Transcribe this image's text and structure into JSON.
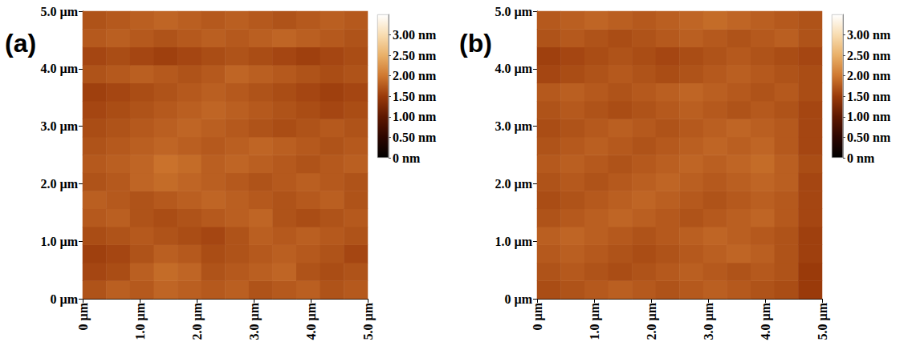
{
  "chart_data": [
    {
      "type": "heatmap",
      "panel": "(a)",
      "xlim": [
        0,
        5
      ],
      "ylim": [
        0,
        5
      ],
      "xticks": [
        {
          "value": 0,
          "label": "0 µm"
        },
        {
          "value": 1,
          "label": "1.0 µm"
        },
        {
          "value": 2,
          "label": "2.0 µm"
        },
        {
          "value": 3,
          "label": "3.0 µm"
        },
        {
          "value": 4,
          "label": "4.0 µm"
        },
        {
          "value": 5,
          "label": "5.0 µm"
        }
      ],
      "yticks": [
        {
          "value": 0,
          "label": "0 µm"
        },
        {
          "value": 1,
          "label": "1.0 µm"
        },
        {
          "value": 2,
          "label": "2.0 µm"
        },
        {
          "value": 3,
          "label": "3.0 µm"
        },
        {
          "value": 4,
          "label": "4.0 µm"
        },
        {
          "value": 5,
          "label": "5.0 µm"
        }
      ],
      "colorbar": {
        "range": [
          0,
          3.5
        ],
        "ticks": [
          {
            "value": 0,
            "label": "0 nm"
          },
          {
            "value": 0.5,
            "label": "0.50 nm"
          },
          {
            "value": 1,
            "label": "1.00 nm"
          },
          {
            "value": 1.5,
            "label": "1.50 nm"
          },
          {
            "value": 2,
            "label": "2.00 nm"
          },
          {
            "value": 2.5,
            "label": "2.50 nm"
          },
          {
            "value": 3,
            "label": "3.00 nm"
          }
        ]
      },
      "cells": [
        [
          1.7,
          1.8,
          1.75,
          1.85,
          1.8,
          1.75,
          1.8,
          1.7,
          1.75,
          1.8,
          1.7,
          1.75
        ],
        [
          1.6,
          1.65,
          1.8,
          1.9,
          1.85,
          1.7,
          1.75,
          1.8,
          1.85,
          1.7,
          1.65,
          1.7
        ],
        [
          1.55,
          1.6,
          1.7,
          1.8,
          1.75,
          1.65,
          1.7,
          1.75,
          1.8,
          1.75,
          1.7,
          1.6
        ],
        [
          1.65,
          1.7,
          1.75,
          1.7,
          1.65,
          1.6,
          1.7,
          1.8,
          1.75,
          1.8,
          1.75,
          1.7
        ],
        [
          1.75,
          1.8,
          1.7,
          1.65,
          1.7,
          1.75,
          1.8,
          1.85,
          1.7,
          1.65,
          1.7,
          1.75
        ],
        [
          1.8,
          1.75,
          1.7,
          1.75,
          1.8,
          1.85,
          1.8,
          1.75,
          1.7,
          1.75,
          1.8,
          1.7
        ],
        [
          1.7,
          1.75,
          1.85,
          1.9,
          1.85,
          1.8,
          1.75,
          1.7,
          1.75,
          1.8,
          1.75,
          1.7
        ],
        [
          1.75,
          1.8,
          1.85,
          1.95,
          1.9,
          1.8,
          1.85,
          1.8,
          1.75,
          1.7,
          1.75,
          1.8
        ],
        [
          1.7,
          1.75,
          1.8,
          1.85,
          1.8,
          1.75,
          1.8,
          1.85,
          1.8,
          1.75,
          1.7,
          1.75
        ],
        [
          1.65,
          1.7,
          1.75,
          1.8,
          1.85,
          1.8,
          1.75,
          1.7,
          1.65,
          1.7,
          1.75,
          1.7
        ],
        [
          1.6,
          1.65,
          1.7,
          1.75,
          1.8,
          1.85,
          1.8,
          1.75,
          1.7,
          1.65,
          1.6,
          1.65
        ],
        [
          1.55,
          1.6,
          1.65,
          1.7,
          1.75,
          1.8,
          1.75,
          1.7,
          1.65,
          1.6,
          1.55,
          1.6
        ],
        [
          1.7,
          1.75,
          1.8,
          1.75,
          1.7,
          1.75,
          1.85,
          1.8,
          1.75,
          1.7,
          1.65,
          1.7
        ],
        [
          1.6,
          1.65,
          1.6,
          1.55,
          1.6,
          1.65,
          1.7,
          1.65,
          1.6,
          1.55,
          1.6,
          1.65
        ],
        [
          1.75,
          1.8,
          1.75,
          1.7,
          1.75,
          1.8,
          1.75,
          1.8,
          1.85,
          1.8,
          1.75,
          1.7
        ],
        [
          1.7,
          1.75,
          1.8,
          1.85,
          1.8,
          1.75,
          1.8,
          1.75,
          1.7,
          1.75,
          1.8,
          1.75
        ]
      ]
    },
    {
      "type": "heatmap",
      "panel": "(b)",
      "xlim": [
        0,
        5
      ],
      "ylim": [
        0,
        5
      ],
      "xticks": [
        {
          "value": 0,
          "label": "0 µm"
        },
        {
          "value": 1,
          "label": "1.0 µm"
        },
        {
          "value": 2,
          "label": "2.0 µm"
        },
        {
          "value": 3,
          "label": "3.0 µm"
        },
        {
          "value": 4,
          "label": "4.0 µm"
        },
        {
          "value": 5,
          "label": "5.0 µm"
        }
      ],
      "yticks": [
        {
          "value": 0,
          "label": "0 µm"
        },
        {
          "value": 1,
          "label": "1.0 µm"
        },
        {
          "value": 2,
          "label": "2.0 µm"
        },
        {
          "value": 3,
          "label": "3.0 µm"
        },
        {
          "value": 4,
          "label": "4.0 µm"
        },
        {
          "value": 5,
          "label": "5.0 µm"
        }
      ],
      "colorbar": {
        "range": [
          0,
          3.5
        ],
        "ticks": [
          {
            "value": 0,
            "label": "0 nm"
          },
          {
            "value": 0.5,
            "label": "0.50 nm"
          },
          {
            "value": 1,
            "label": "1.00 nm"
          },
          {
            "value": 1.5,
            "label": "1.50 nm"
          },
          {
            "value": 2,
            "label": "2.00 nm"
          },
          {
            "value": 2.5,
            "label": "2.50 nm"
          },
          {
            "value": 3,
            "label": "3.00 nm"
          }
        ]
      },
      "cells": [
        [
          1.65,
          1.7,
          1.75,
          1.8,
          1.75,
          1.7,
          1.75,
          1.8,
          1.75,
          1.7,
          1.65,
          1.5
        ],
        [
          1.7,
          1.75,
          1.7,
          1.65,
          1.7,
          1.75,
          1.8,
          1.75,
          1.7,
          1.75,
          1.7,
          1.5
        ],
        [
          1.75,
          1.8,
          1.75,
          1.7,
          1.65,
          1.7,
          1.75,
          1.8,
          1.85,
          1.8,
          1.7,
          1.55
        ],
        [
          1.8,
          1.85,
          1.8,
          1.75,
          1.7,
          1.75,
          1.8,
          1.85,
          1.8,
          1.75,
          1.7,
          1.55
        ],
        [
          1.7,
          1.75,
          1.8,
          1.85,
          1.8,
          1.75,
          1.7,
          1.75,
          1.8,
          1.85,
          1.75,
          1.6
        ],
        [
          1.65,
          1.7,
          1.75,
          1.8,
          1.85,
          1.8,
          1.75,
          1.7,
          1.75,
          1.8,
          1.75,
          1.6
        ],
        [
          1.7,
          1.75,
          1.7,
          1.75,
          1.8,
          1.85,
          1.8,
          1.75,
          1.8,
          1.85,
          1.8,
          1.6
        ],
        [
          1.75,
          1.8,
          1.75,
          1.7,
          1.75,
          1.8,
          1.85,
          1.8,
          1.85,
          1.9,
          1.8,
          1.65
        ],
        [
          1.7,
          1.75,
          1.8,
          1.75,
          1.7,
          1.75,
          1.8,
          1.85,
          1.8,
          1.85,
          1.75,
          1.6
        ],
        [
          1.65,
          1.7,
          1.75,
          1.8,
          1.75,
          1.7,
          1.75,
          1.8,
          1.85,
          1.8,
          1.75,
          1.6
        ],
        [
          1.7,
          1.75,
          1.7,
          1.65,
          1.7,
          1.75,
          1.8,
          1.75,
          1.7,
          1.75,
          1.7,
          1.6
        ],
        [
          1.75,
          1.8,
          1.75,
          1.7,
          1.75,
          1.8,
          1.85,
          1.8,
          1.75,
          1.7,
          1.75,
          1.65
        ],
        [
          1.6,
          1.65,
          1.7,
          1.75,
          1.7,
          1.65,
          1.7,
          1.75,
          1.8,
          1.75,
          1.7,
          1.65
        ],
        [
          1.55,
          1.6,
          1.65,
          1.7,
          1.65,
          1.6,
          1.65,
          1.7,
          1.75,
          1.7,
          1.65,
          1.6
        ],
        [
          1.7,
          1.75,
          1.7,
          1.65,
          1.7,
          1.75,
          1.8,
          1.75,
          1.7,
          1.75,
          1.8,
          1.7
        ],
        [
          1.75,
          1.8,
          1.85,
          1.8,
          1.75,
          1.8,
          1.85,
          1.9,
          1.85,
          1.8,
          1.75,
          1.7
        ]
      ]
    }
  ]
}
